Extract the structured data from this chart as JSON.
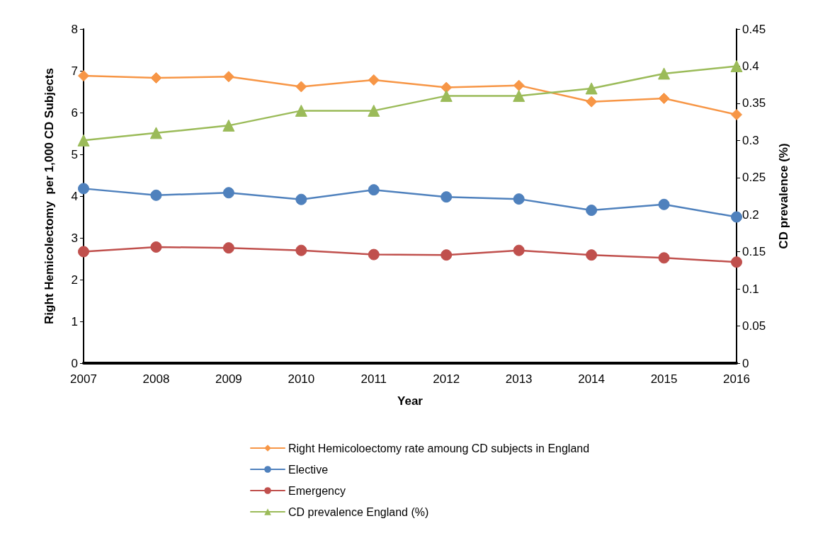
{
  "chart_data": {
    "type": "line",
    "xlabel": "Year",
    "ylabel": "Right Hemicolectomy  per 1,000 CD Subjects",
    "y2label": "CD prevalence (%)",
    "categories": [
      "2007",
      "2008",
      "2009",
      "2010",
      "2011",
      "2012",
      "2013",
      "2014",
      "2015",
      "2016"
    ],
    "series": [
      {
        "name": "Right Hemicoloectomy rate amoung CD subjects in England",
        "color": "#f79646",
        "marker": "diamond",
        "values": [
          6.88,
          6.83,
          6.86,
          6.62,
          6.78,
          6.6,
          6.65,
          6.26,
          6.34,
          5.95
        ]
      },
      {
        "name": "Elective",
        "color": "#4f81bd",
        "marker": "circle",
        "values": [
          4.18,
          4.02,
          4.08,
          3.92,
          4.15,
          3.98,
          3.93,
          3.66,
          3.8,
          3.5
        ]
      },
      {
        "name": "Emergency",
        "color": "#c0504d",
        "marker": "circle",
        "values": [
          2.67,
          2.78,
          2.76,
          2.7,
          2.6,
          2.59,
          2.7,
          2.59,
          2.52,
          2.42
        ]
      },
      {
        "name": "CD prevalence England (%)",
        "color": "#9bbb59",
        "marker": "triangle",
        "axis": "y2",
        "values": [
          0.3,
          0.31,
          0.32,
          0.34,
          0.34,
          0.36,
          0.36,
          0.37,
          0.39,
          0.4
        ]
      }
    ],
    "ylim": [
      0,
      8
    ],
    "yticks": [
      0,
      1,
      2,
      3,
      4,
      5,
      6,
      7,
      8
    ],
    "y2lim": [
      0,
      0.45
    ],
    "y2ticks": [
      0,
      0.05,
      0.1,
      0.15,
      0.2,
      0.25,
      0.3,
      0.35,
      0.4,
      0.45
    ],
    "grid": false,
    "legend": "bottom",
    "line_style": "solid"
  }
}
